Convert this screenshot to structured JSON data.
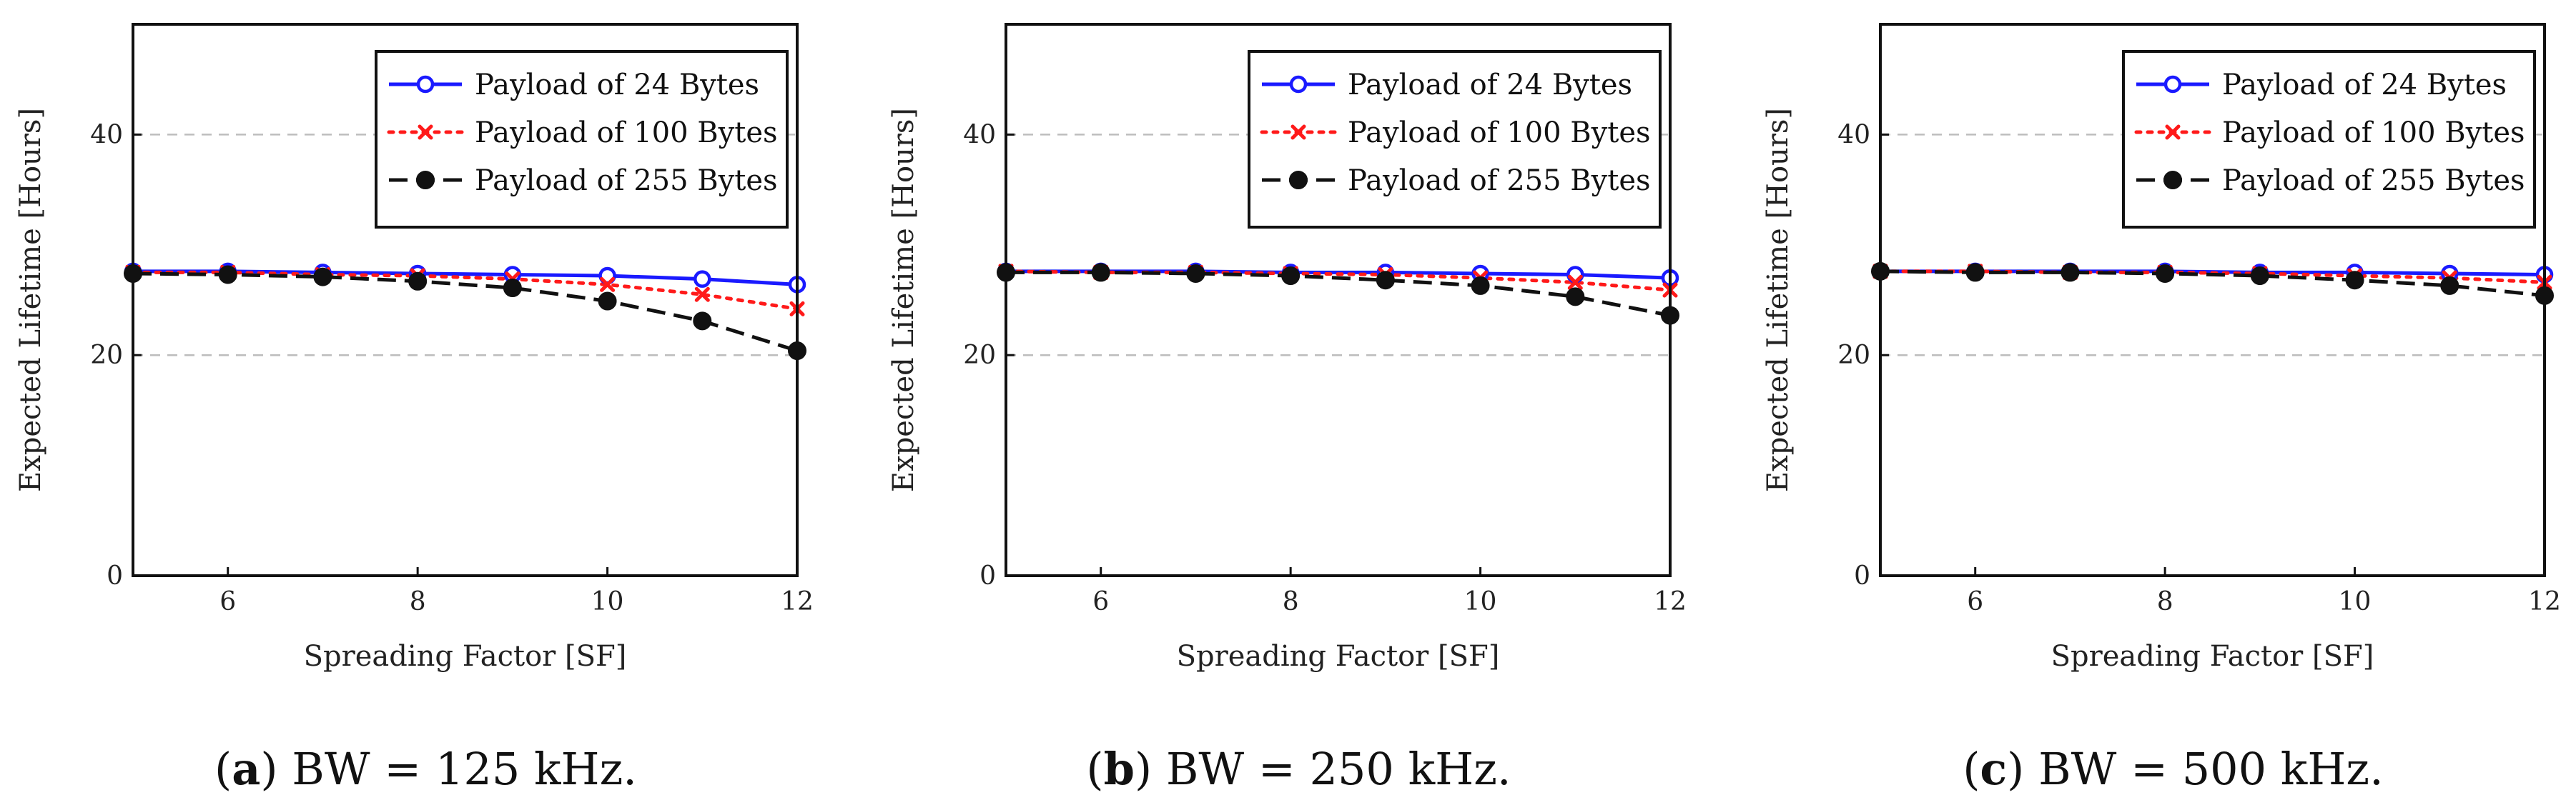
{
  "chart_data": [
    {
      "type": "line",
      "caption_prefix": "(",
      "caption_letter": "a",
      "caption_rest": ") BW = 125 kHz.",
      "xlabel": "Spreading Factor [SF]",
      "ylabel": "Expected Lifetime [Hours]",
      "xlim": [
        5,
        12
      ],
      "ylim": [
        0,
        50
      ],
      "xticks": [
        6,
        8,
        10,
        12
      ],
      "yticks": [
        0,
        20,
        40
      ],
      "grid": "horizontal-dashed",
      "legend": "top-right",
      "x": [
        5,
        6,
        7,
        8,
        9,
        10,
        11,
        12
      ],
      "series": [
        {
          "name": "Payload of 24 Bytes",
          "values": [
            27.6,
            27.6,
            27.5,
            27.4,
            27.3,
            27.2,
            26.9,
            26.4
          ],
          "color": "#1a1aff",
          "marker": "open-circle",
          "dash": "solid"
        },
        {
          "name": "Payload of 100 Bytes",
          "values": [
            27.5,
            27.5,
            27.3,
            27.2,
            26.9,
            26.4,
            25.5,
            24.2
          ],
          "color": "#ff1a1a",
          "marker": "x",
          "dash": "dotted"
        },
        {
          "name": "Payload of 255 Bytes",
          "values": [
            27.4,
            27.3,
            27.1,
            26.7,
            26.1,
            24.9,
            23.1,
            20.4
          ],
          "color": "#111111",
          "marker": "filled-circle",
          "dash": "dashed"
        }
      ]
    },
    {
      "type": "line",
      "caption_prefix": "(",
      "caption_letter": "b",
      "caption_rest": ") BW = 250 kHz.",
      "xlabel": "Spreading Factor [SF]",
      "ylabel": "Expected Lifetime [Hours]",
      "xlim": [
        5,
        12
      ],
      "ylim": [
        0,
        50
      ],
      "xticks": [
        6,
        8,
        10,
        12
      ],
      "yticks": [
        0,
        20,
        40
      ],
      "grid": "horizontal-dashed",
      "legend": "top-right",
      "x": [
        5,
        6,
        7,
        8,
        9,
        10,
        11,
        12
      ],
      "series": [
        {
          "name": "Payload of 24 Bytes",
          "values": [
            27.6,
            27.6,
            27.6,
            27.5,
            27.5,
            27.4,
            27.3,
            27.0
          ],
          "color": "#1a1aff",
          "marker": "open-circle",
          "dash": "solid"
        },
        {
          "name": "Payload of 100 Bytes",
          "values": [
            27.6,
            27.5,
            27.5,
            27.4,
            27.3,
            27.0,
            26.6,
            25.9
          ],
          "color": "#ff1a1a",
          "marker": "x",
          "dash": "dotted"
        },
        {
          "name": "Payload of 255 Bytes",
          "values": [
            27.5,
            27.5,
            27.4,
            27.2,
            26.8,
            26.3,
            25.3,
            23.6
          ],
          "color": "#111111",
          "marker": "filled-circle",
          "dash": "dashed"
        }
      ]
    },
    {
      "type": "line",
      "caption_prefix": "(",
      "caption_letter": "c",
      "caption_rest": ") BW = 500 kHz.",
      "xlabel": "Spreading Factor [SF]",
      "ylabel": "Expected Lifetime [Hours]",
      "xlim": [
        5,
        12
      ],
      "ylim": [
        0,
        50
      ],
      "xticks": [
        6,
        8,
        10,
        12
      ],
      "yticks": [
        0,
        20,
        40
      ],
      "grid": "horizontal-dashed",
      "legend": "top-right",
      "x": [
        5,
        6,
        7,
        8,
        9,
        10,
        11,
        12
      ],
      "series": [
        {
          "name": "Payload of 24 Bytes",
          "values": [
            27.6,
            27.6,
            27.6,
            27.6,
            27.5,
            27.5,
            27.4,
            27.3
          ],
          "color": "#1a1aff",
          "marker": "open-circle",
          "dash": "solid"
        },
        {
          "name": "Payload of 100 Bytes",
          "values": [
            27.6,
            27.6,
            27.5,
            27.5,
            27.4,
            27.2,
            27.0,
            26.6
          ],
          "color": "#ff1a1a",
          "marker": "x",
          "dash": "dotted"
        },
        {
          "name": "Payload of 255 Bytes",
          "values": [
            27.6,
            27.5,
            27.5,
            27.4,
            27.2,
            26.8,
            26.3,
            25.4
          ],
          "color": "#111111",
          "marker": "filled-circle",
          "dash": "dashed"
        }
      ]
    }
  ]
}
